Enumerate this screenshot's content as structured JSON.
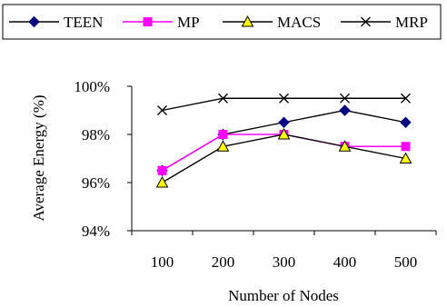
{
  "chart_data": {
    "type": "line",
    "xlabel": "Number of Nodes",
    "ylabel": "Average Energy  (%)",
    "categories": [
      "100",
      "200",
      "300",
      "400",
      "500"
    ],
    "ylim": [
      94,
      100
    ],
    "yticks": [
      94,
      96,
      98,
      100
    ],
    "ytick_labels": [
      "94%",
      "96%",
      "98%",
      "100%"
    ],
    "grid": false,
    "legend_position": "top",
    "series": [
      {
        "name": "TEEN",
        "values": [
          96.5,
          98.0,
          98.5,
          99.0,
          98.5
        ],
        "color": "#000080",
        "line_color": "#000000",
        "marker": "diamond"
      },
      {
        "name": "MP",
        "values": [
          96.5,
          98.0,
          98.0,
          97.5,
          97.5
        ],
        "color": "#ff00ff",
        "line_color": "#ff00ff",
        "marker": "square"
      },
      {
        "name": "MACS",
        "values": [
          96.0,
          97.5,
          98.0,
          97.5,
          97.0
        ],
        "color": "#ffff00",
        "line_color": "#000000",
        "marker": "triangle"
      },
      {
        "name": "MRP",
        "values": [
          99.0,
          99.5,
          99.5,
          99.5,
          99.5
        ],
        "color": "#000000",
        "line_color": "#000000",
        "marker": "x"
      }
    ]
  }
}
